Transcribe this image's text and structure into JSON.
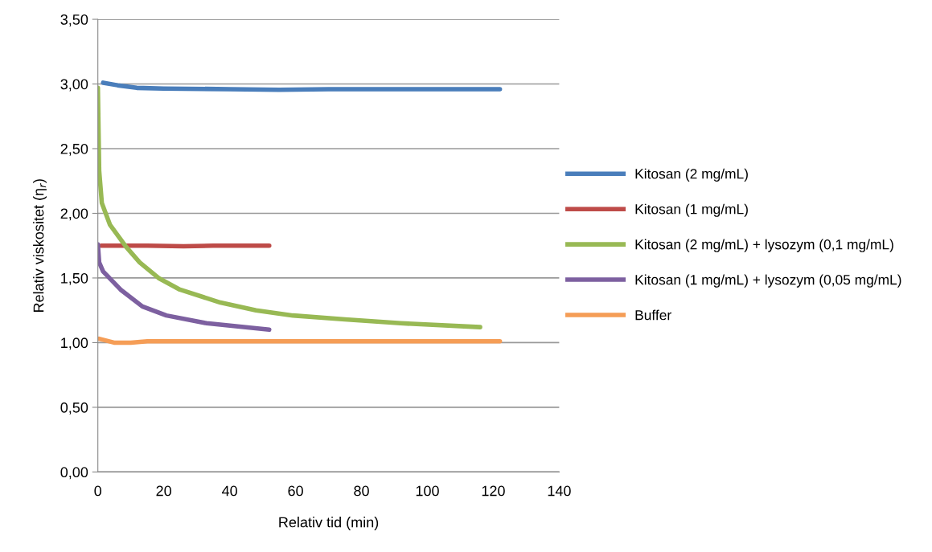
{
  "chart_data": {
    "type": "line",
    "xlabel": "Relativ tid (min)",
    "ylabel": "Relativ viskositet (η$_{r}$)",
    "xlim": [
      0,
      140
    ],
    "xticks": [
      0,
      20,
      40,
      60,
      80,
      100,
      120,
      140
    ],
    "ylim": [
      0,
      3.5
    ],
    "yticks": [
      {
        "value": 0,
        "label": "0,00"
      },
      {
        "value": 0.5,
        "label": "0,50"
      },
      {
        "value": 1,
        "label": "1,00"
      },
      {
        "value": 1.5,
        "label": "1,50"
      },
      {
        "value": 2,
        "label": "2,00"
      },
      {
        "value": 2.5,
        "label": "2,50"
      },
      {
        "value": 3,
        "label": "3,00"
      },
      {
        "value": 3.5,
        "label": "3,50"
      }
    ],
    "grid": "y",
    "legend": "right",
    "marker": "none",
    "line_style": "solid",
    "series": [
      {
        "name": "Kitosan (2 mg/mL)",
        "color": "#4a7ebb",
        "x": [
          1.6,
          6,
          11.8,
          20,
          40,
          55,
          70,
          90,
          122
        ],
        "values": [
          3.01,
          2.99,
          2.97,
          2.965,
          2.96,
          2.955,
          2.96,
          2.96,
          2.96
        ]
      },
      {
        "name": "Kitosan (1 mg/mL)",
        "color": "#be4b48",
        "x": [
          1,
          15,
          26,
          35,
          52
        ],
        "values": [
          1.75,
          1.75,
          1.745,
          1.75,
          1.75
        ]
      },
      {
        "name": "Kitosan (2 mg/mL) + lysozym (0,1 mg/mL)",
        "color": "#98b954",
        "x": [
          0,
          0.4,
          1.2,
          3.7,
          8.6,
          12.7,
          18.4,
          24.9,
          37.2,
          48,
          59.2,
          75,
          91.9,
          116
        ],
        "values": [
          2.97,
          2.33,
          2.08,
          1.91,
          1.74,
          1.62,
          1.5,
          1.41,
          1.31,
          1.25,
          1.21,
          1.18,
          1.15,
          1.12
        ]
      },
      {
        "name": "Kitosan (1 mg/mL) + lysozym (0,05 mg/mL)",
        "color": "#7d60a0",
        "x": [
          0,
          0.4,
          1.6,
          6.9,
          13.5,
          20.8,
          33,
          52
        ],
        "values": [
          1.76,
          1.62,
          1.55,
          1.41,
          1.28,
          1.21,
          1.15,
          1.1
        ]
      },
      {
        "name": "Buffer",
        "color": "#f59d56",
        "x": [
          0.4,
          4.9,
          10,
          15,
          60,
          122
        ],
        "values": [
          1.03,
          1.0,
          1.0,
          1.01,
          1.01,
          1.01
        ]
      }
    ]
  }
}
